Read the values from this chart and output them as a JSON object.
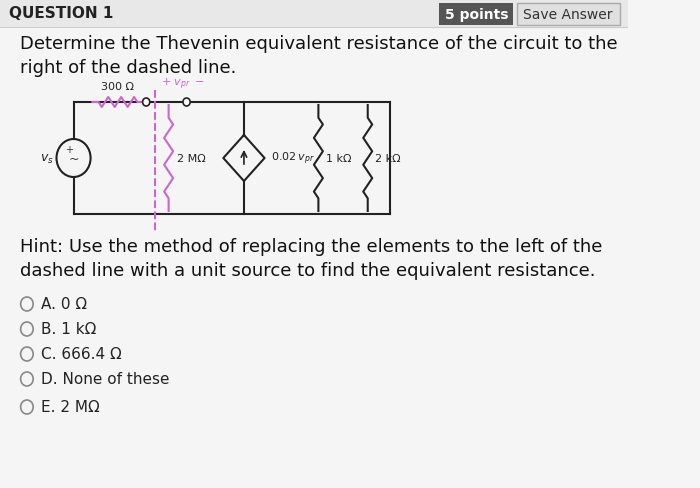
{
  "bg_color": "#f5f5f5",
  "header_text": "QUESTION 1",
  "header_fontsize": 11,
  "points_text": "5 points",
  "save_text": "Save Answer",
  "question_text": "Determine the Thevenin equivalent resistance of the circuit to the\nright of the dashed line.",
  "question_fontsize": 13,
  "hint_text": "Hint: Use the method of replacing the elements to the left of the\ndashed line with a unit source to find the equivalent resistance.",
  "hint_fontsize": 13,
  "choices": [
    "A. 0 Ω",
    "B. 1 kΩ",
    "C. 666.4 Ω",
    "D. None of these",
    "E. 2 MΩ"
  ],
  "choice_fontsize": 11,
  "dashed_line_color": "#cc66cc",
  "circuit_line_color": "#000000",
  "resistor_pink_color": "#cc66cc",
  "resistor_black_color": "#000000"
}
